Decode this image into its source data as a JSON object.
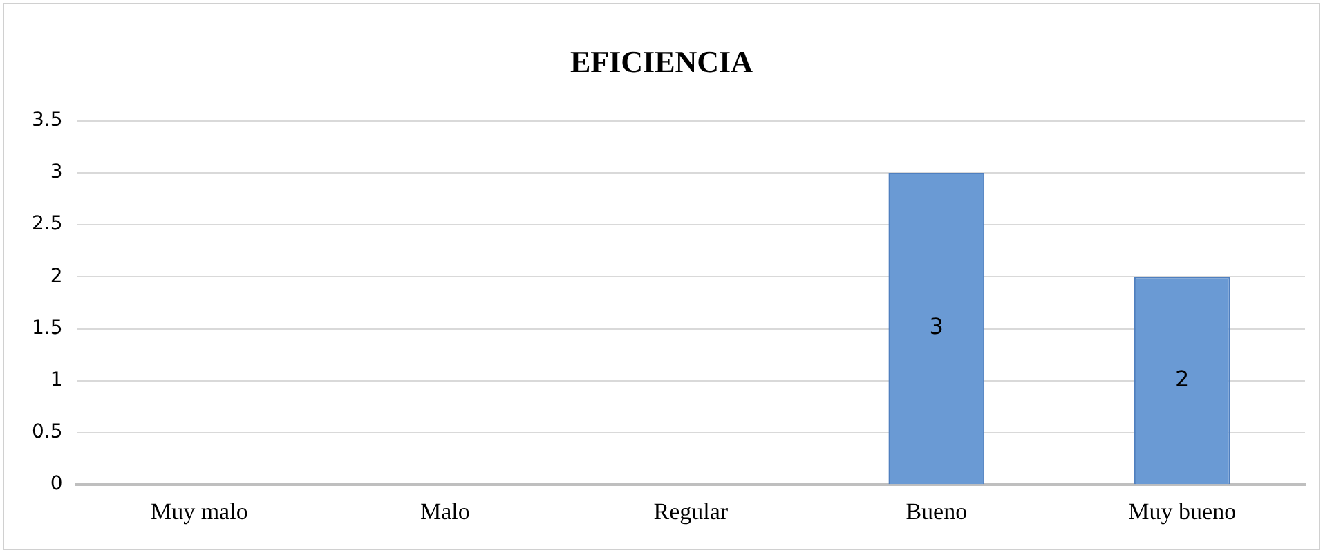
{
  "chart_data": {
    "type": "bar",
    "title": "EFICIENCIA",
    "categories": [
      "Muy malo",
      "Malo",
      "Regular",
      "Bueno",
      "Muy bueno"
    ],
    "values": [
      0,
      0,
      0,
      3,
      2
    ],
    "color": "#6a9ad4",
    "value_labels": [
      null,
      null,
      null,
      "3",
      "2"
    ],
    "ylim": [
      0,
      3.5
    ],
    "yticks": [
      0,
      0.5,
      1,
      1.5,
      2,
      2.5,
      3,
      3.5
    ],
    "grid": "y",
    "legend": false
  }
}
